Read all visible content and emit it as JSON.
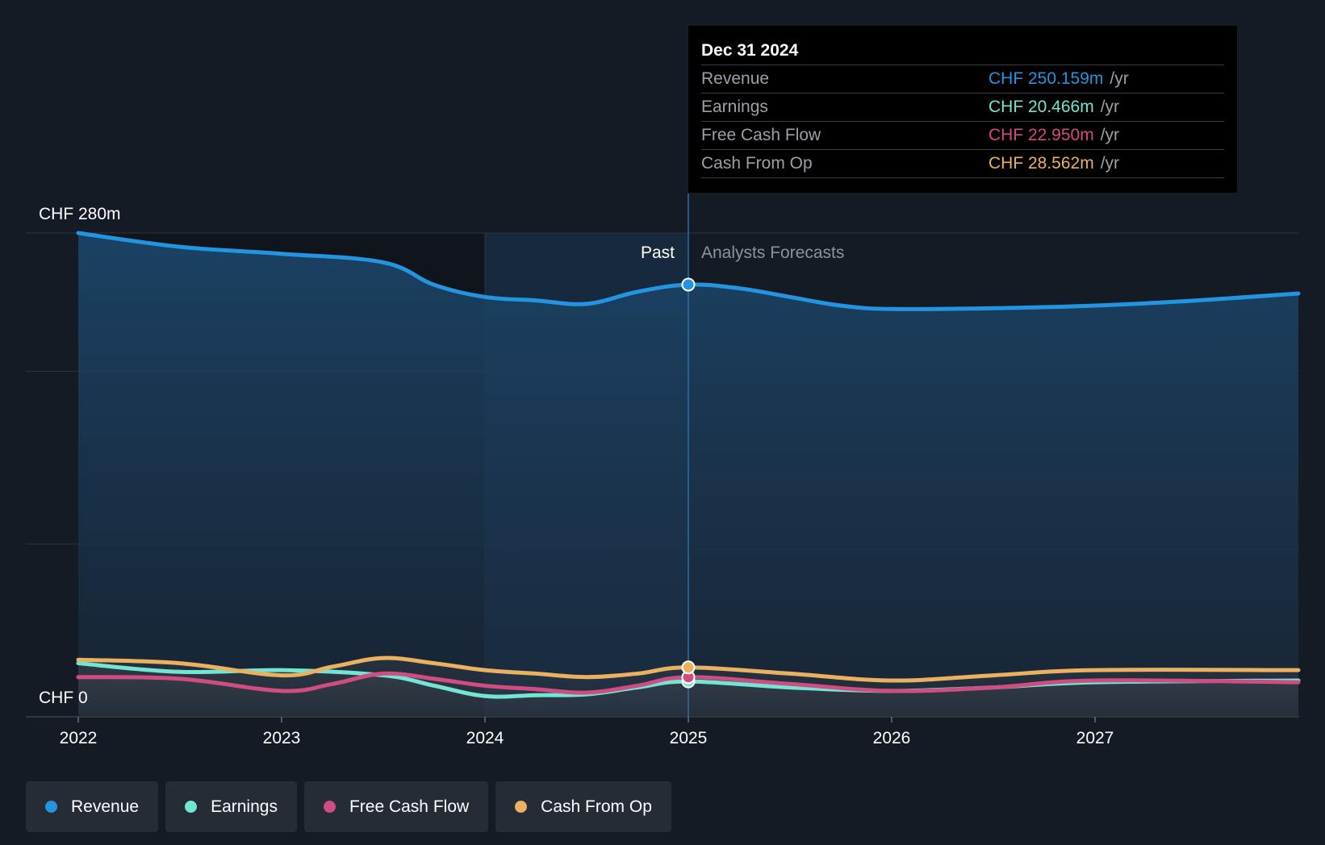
{
  "chart_data": {
    "type": "area",
    "y_top_label": "CHF 280m",
    "y_bottom_label": "CHF 0",
    "ylim": [
      0,
      280
    ],
    "xlim": [
      2022.0,
      2028.0
    ],
    "x_ticks": [
      "2022",
      "2023",
      "2024",
      "2025",
      "2026",
      "2027"
    ],
    "past_label": "Past",
    "forecast_label": "Analysts Forecasts",
    "divider_x": 2025.0,
    "highlight_range": [
      2024.0,
      2025.0
    ],
    "grid": true,
    "series": [
      {
        "name": "Revenue",
        "color": "#2394df",
        "points": [
          [
            2022.0,
            280
          ],
          [
            2022.5,
            272
          ],
          [
            2023.0,
            268
          ],
          [
            2023.5,
            263
          ],
          [
            2023.75,
            250
          ],
          [
            2024.0,
            243
          ],
          [
            2024.25,
            241
          ],
          [
            2024.5,
            239
          ],
          [
            2024.75,
            246
          ],
          [
            2025.0,
            250.159
          ],
          [
            2025.25,
            248
          ],
          [
            2025.5,
            243
          ],
          [
            2025.75,
            238
          ],
          [
            2026.0,
            236
          ],
          [
            2026.5,
            236.5
          ],
          [
            2027.0,
            238
          ],
          [
            2027.5,
            241
          ],
          [
            2028.0,
            245
          ]
        ]
      },
      {
        "name": "Earnings",
        "color": "#72e5d5",
        "points": [
          [
            2022.0,
            31
          ],
          [
            2022.5,
            26
          ],
          [
            2023.0,
            27
          ],
          [
            2023.5,
            24
          ],
          [
            2023.75,
            18
          ],
          [
            2024.0,
            12
          ],
          [
            2024.25,
            12.5
          ],
          [
            2024.5,
            13
          ],
          [
            2024.75,
            17
          ],
          [
            2025.0,
            20.466
          ],
          [
            2025.5,
            17
          ],
          [
            2026.0,
            15
          ],
          [
            2026.5,
            17
          ],
          [
            2027.0,
            20
          ],
          [
            2028.0,
            21
          ]
        ]
      },
      {
        "name": "Free Cash Flow",
        "color": "#cf4d80",
        "points": [
          [
            2022.0,
            23
          ],
          [
            2022.5,
            22
          ],
          [
            2023.0,
            15
          ],
          [
            2023.25,
            19
          ],
          [
            2023.5,
            25
          ],
          [
            2023.75,
            22
          ],
          [
            2024.0,
            18
          ],
          [
            2024.25,
            16
          ],
          [
            2024.5,
            14
          ],
          [
            2024.75,
            18
          ],
          [
            2025.0,
            22.95
          ],
          [
            2025.5,
            19
          ],
          [
            2026.0,
            15
          ],
          [
            2026.5,
            17
          ],
          [
            2027.0,
            21
          ],
          [
            2028.0,
            20
          ]
        ]
      },
      {
        "name": "Cash From Op",
        "color": "#e9b160",
        "points": [
          [
            2022.0,
            33
          ],
          [
            2022.5,
            31
          ],
          [
            2023.0,
            24
          ],
          [
            2023.25,
            29
          ],
          [
            2023.5,
            34
          ],
          [
            2023.75,
            31
          ],
          [
            2024.0,
            27
          ],
          [
            2024.25,
            25
          ],
          [
            2024.5,
            23
          ],
          [
            2024.75,
            25
          ],
          [
            2025.0,
            28.562
          ],
          [
            2025.5,
            25
          ],
          [
            2026.0,
            21
          ],
          [
            2026.5,
            24
          ],
          [
            2027.0,
            27
          ],
          [
            2028.0,
            27
          ]
        ]
      }
    ]
  },
  "tooltip": {
    "date": "Dec 31 2024",
    "unit": "/yr",
    "rows": [
      {
        "label": "Revenue",
        "value": "CHF 250.159m",
        "color": "#2394df"
      },
      {
        "label": "Earnings",
        "value": "CHF 20.466m",
        "color": "#72e5d5"
      },
      {
        "label": "Free Cash Flow",
        "value": "CHF 22.950m",
        "color": "#cf4d80"
      },
      {
        "label": "Cash From Op",
        "value": "CHF 28.562m",
        "color": "#e9b160"
      }
    ]
  },
  "legend": [
    {
      "label": "Revenue",
      "color": "#2394df"
    },
    {
      "label": "Earnings",
      "color": "#72e5d5"
    },
    {
      "label": "Free Cash Flow",
      "color": "#cf4d80"
    },
    {
      "label": "Cash From Op",
      "color": "#e9b160"
    }
  ]
}
